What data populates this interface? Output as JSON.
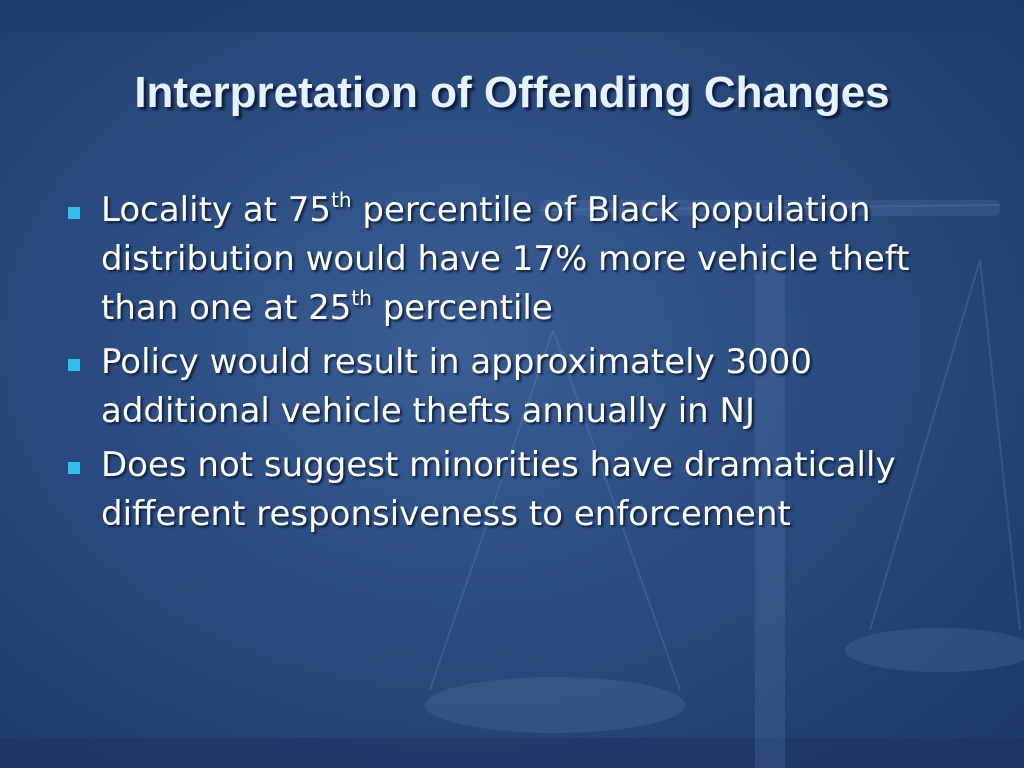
{
  "header": {
    "title": "Interpretation of Offending Changes"
  },
  "bullets": [
    [
      {
        "text": "Locality at 75"
      },
      {
        "sup": "th"
      },
      {
        "text": " percentile of Black population distribution would have 17% more vehicle theft than one at 25"
      },
      {
        "sup": "th"
      },
      {
        "text": " percentile"
      }
    ],
    [
      {
        "text": "Policy would result in approximately 3000 additional vehicle thefts annually in NJ"
      }
    ],
    [
      {
        "text": "Does not suggest minorities have dramatically different responsiveness to enforcement"
      }
    ]
  ]
}
